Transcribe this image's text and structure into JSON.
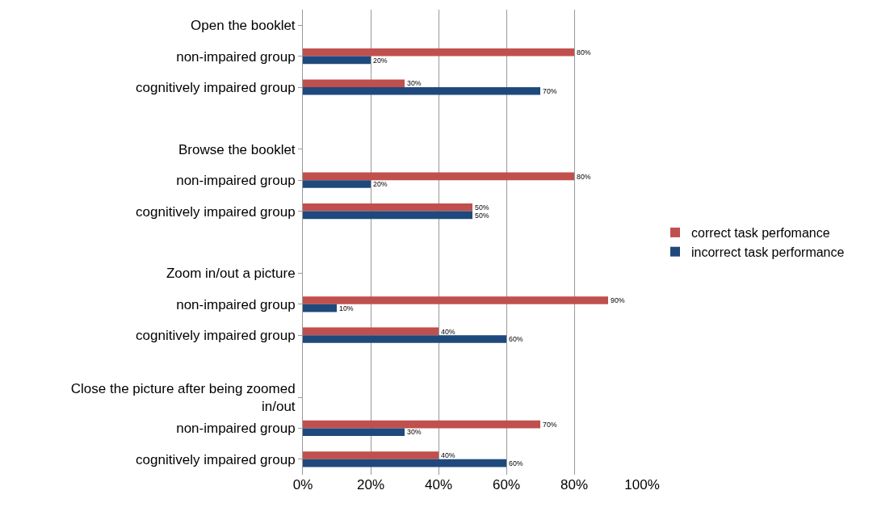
{
  "chart_data": {
    "type": "bar",
    "orientation": "horizontal",
    "categories": [
      "Open the booklet",
      "non-impaired group",
      "cognitively impaired group",
      null,
      "Browse the booklet",
      "non-impaired group",
      "cognitively impaired group",
      null,
      "Zoom in/out a picture",
      "non-impaired group",
      "cognitively impaired group",
      null,
      "Close the picture after being zoomed in/out",
      "non-impaired group",
      "cognitively impaired group"
    ],
    "series": [
      {
        "name": "correct task perfomance",
        "color": "#c0504d",
        "values": [
          null,
          80,
          30,
          null,
          null,
          80,
          50,
          null,
          null,
          90,
          40,
          null,
          null,
          70,
          40
        ],
        "value_labels": [
          null,
          "80%",
          "30%",
          null,
          null,
          "80%",
          "50%",
          null,
          null,
          "90%",
          "40%",
          null,
          null,
          "70%",
          "40%"
        ]
      },
      {
        "name": "incorrect task performance",
        "color": "#1f497d",
        "values": [
          null,
          20,
          70,
          null,
          null,
          20,
          50,
          null,
          null,
          10,
          60,
          null,
          null,
          30,
          60
        ],
        "value_labels": [
          null,
          "20%",
          "70%",
          null,
          null,
          "20%",
          "50%",
          null,
          null,
          "10%",
          "60%",
          null,
          null,
          "30%",
          "60%"
        ]
      }
    ],
    "xlim": [
      0,
      100
    ],
    "xticks": [
      {
        "value": 0,
        "label": "0%"
      },
      {
        "value": 20,
        "label": "20%"
      },
      {
        "value": 40,
        "label": "40%"
      },
      {
        "value": 60,
        "label": "60%"
      },
      {
        "value": 80,
        "label": "80%"
      },
      {
        "value": 100,
        "label": "100%"
      }
    ],
    "grid": "x",
    "legend": "right"
  }
}
